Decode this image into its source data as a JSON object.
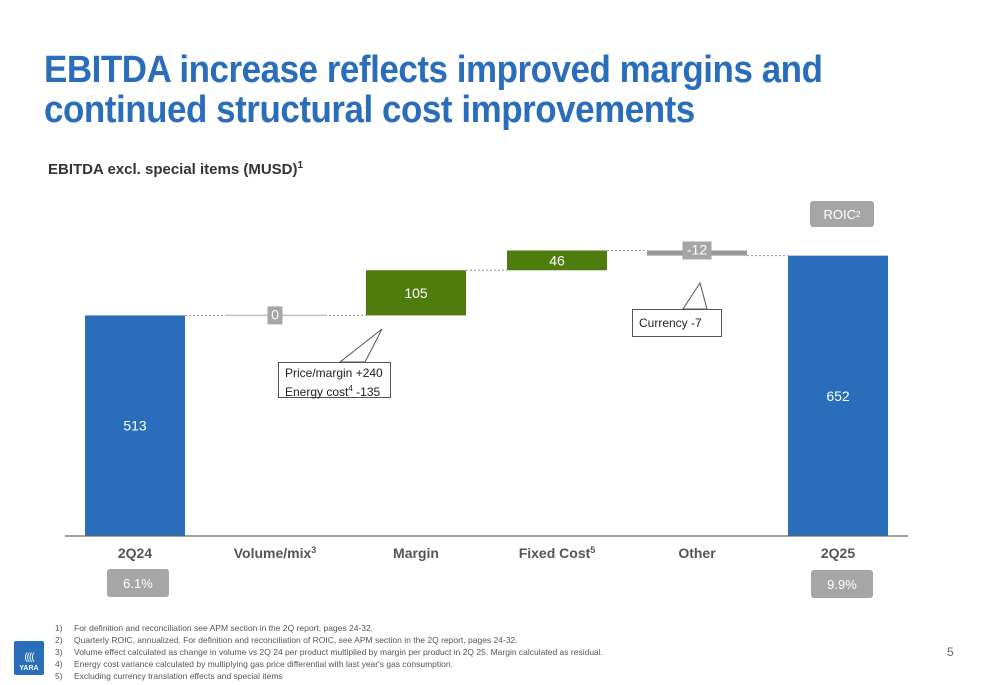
{
  "title": {
    "line1": "EBITDA increase reflects improved margins and",
    "line2": "continued structural cost improvements"
  },
  "subtitle": "EBITDA excl. special items (MUSD)",
  "subtitle_footnote": "1",
  "roic_label": "ROIC",
  "roic_label_footnote": "2",
  "roic_values": {
    "2q24": "6.1%",
    "2q25": "9.9%"
  },
  "callouts": {
    "margin_line1": "Price/margin +240",
    "margin_line2_prefix": "Energy cost",
    "margin_line2_footnote": "4",
    "margin_line2_suffix": " -135",
    "currency": "Currency -7"
  },
  "footnotes": [
    {
      "num": "1)",
      "text": "For definition and reconciliation see APM section in the 2Q report, pages 24-32."
    },
    {
      "num": "2)",
      "text": "Quarterly ROIC, annualized. For definition and reconciliation of ROIC, see APM section in the 2Q report, pages 24-32."
    },
    {
      "num": "3)",
      "text": "Volume effect calculated as change in volume vs 2Q 24 per product multiplied by margin per product in 2Q 25. Margin calculated as residual."
    },
    {
      "num": "4)",
      "text": "Energy cost variance calculated by multiplying gas price differential with last year's gas consumption."
    },
    {
      "num": "5)",
      "text": "Excluding currency translation effects and special items"
    }
  ],
  "logo_text": "YARA",
  "page_number": "5",
  "colors": {
    "total": "#2a6ebb",
    "increase": "#4e7d0e",
    "decrease": "#999999",
    "title": "#2a6ebb"
  },
  "chart_data": {
    "type": "bar",
    "subtype": "waterfall",
    "categories": [
      "2Q24",
      "Volume/mix",
      "Margin",
      "Fixed Cost",
      "Other",
      "2Q25"
    ],
    "category_footnotes": [
      "",
      "3",
      "",
      "5",
      "",
      ""
    ],
    "values": [
      513,
      0,
      105,
      46,
      -12,
      652
    ],
    "kinds": [
      "total",
      "delta",
      "delta",
      "delta",
      "delta",
      "total"
    ],
    "labels": [
      "513",
      "0",
      "105",
      "46",
      "-12",
      "652"
    ],
    "ylim": [
      0,
      700
    ]
  }
}
